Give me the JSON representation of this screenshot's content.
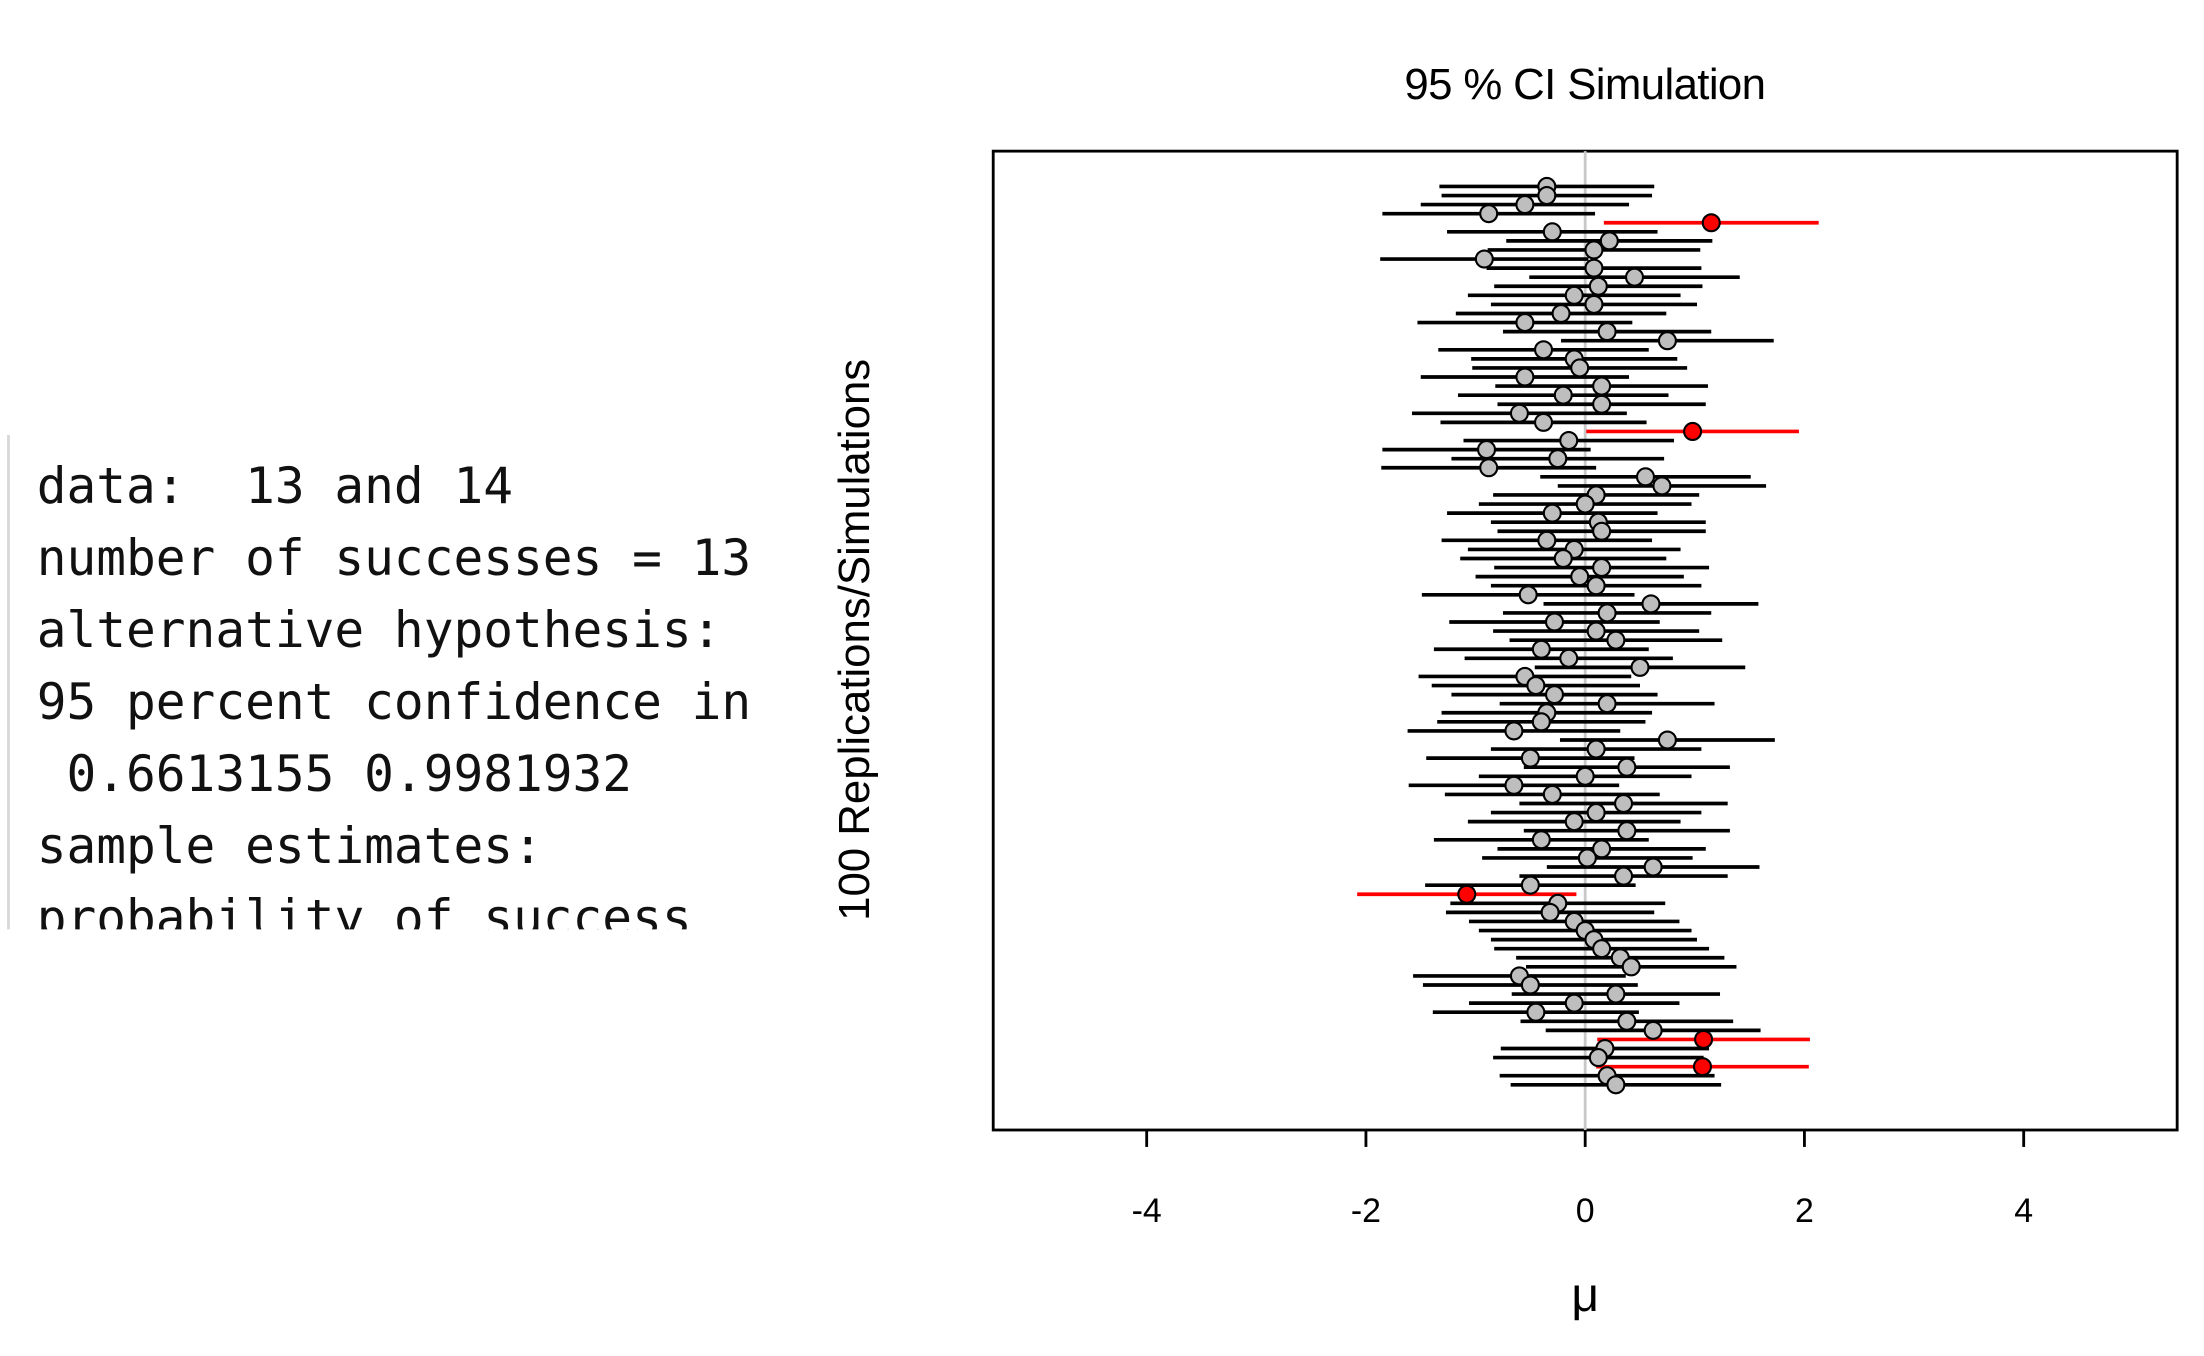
{
  "console": {
    "lines": [
      "data:  13 and 14",
      "number of successes = 13",
      "alternative hypothesis: ",
      "95 percent confidence in",
      " 0.6613155 0.9981932",
      "sample estimates:",
      "probability of success"
    ]
  },
  "chart_data": {
    "type": "ci-simulation",
    "title": "95 % CI Simulation",
    "x_label": "μ",
    "y_label": "100 Replications/Simulations",
    "xlim": [
      -5.4,
      5.4
    ],
    "xticks": [
      -4,
      -2,
      0,
      2,
      4
    ],
    "ref_line": 0,
    "hit_color": "#000000",
    "miss_color": "#ff0000",
    "point_color": "#bebebe",
    "ref_color": "#c8c8c8",
    "values": [
      -0.35,
      -0.35,
      -0.55,
      -0.88,
      1.15,
      -0.3,
      0.22,
      0.08,
      -0.92,
      0.08,
      0.45,
      0.12,
      -0.1,
      0.08,
      -0.22,
      -0.55,
      0.2,
      0.75,
      -0.38,
      -0.1,
      -0.05,
      -0.55,
      0.15,
      -0.2,
      0.15,
      -0.6,
      -0.38,
      0.98,
      -0.15,
      -0.9,
      -0.25,
      -0.88,
      0.55,
      0.7,
      0.1,
      0.0,
      -0.3,
      0.12,
      0.15,
      -0.35,
      -0.1,
      -0.2,
      0.15,
      -0.05,
      0.1,
      -0.52,
      0.6,
      0.2,
      -0.28,
      0.1,
      0.28,
      -0.4,
      -0.15,
      0.5,
      -0.55,
      -0.45,
      -0.28,
      0.2,
      -0.35,
      -0.4,
      -0.65,
      0.75,
      0.1,
      -0.5,
      0.38,
      0.0,
      -0.65,
      -0.3,
      0.35,
      0.1,
      -0.1,
      0.38,
      -0.4,
      0.15,
      0.02,
      0.62,
      0.35,
      -0.5,
      -1.08,
      -0.25,
      -0.32,
      -0.1,
      0.0,
      0.08,
      0.15,
      0.32,
      0.42,
      -0.6,
      -0.5,
      0.28,
      -0.1,
      -0.45,
      0.38,
      0.62,
      1.08,
      0.18,
      0.12,
      1.07,
      0.2,
      0.28
    ],
    "errors": [
      0.98,
      0.96,
      0.95,
      0.97,
      0.98,
      0.96,
      0.94,
      0.97,
      0.95,
      0.98,
      0.96,
      0.95,
      0.97,
      0.94,
      0.96,
      0.98,
      0.95,
      0.97,
      0.96,
      0.94,
      0.98,
      0.95,
      0.97,
      0.96,
      0.95,
      0.98,
      0.94,
      0.97,
      0.96,
      0.95,
      0.97,
      0.98,
      0.96,
      0.95,
      0.94,
      0.97,
      0.96,
      0.98,
      0.95,
      0.96,
      0.97,
      0.94,
      0.98,
      0.95,
      0.96,
      0.97,
      0.98,
      0.95,
      0.96,
      0.94,
      0.97,
      0.98,
      0.95,
      0.96,
      0.97,
      0.95,
      0.94,
      0.98,
      0.96,
      0.95,
      0.97,
      0.98,
      0.96,
      0.95,
      0.94,
      0.97,
      0.96,
      0.98,
      0.95,
      0.96,
      0.97,
      0.94,
      0.98,
      0.95,
      0.96,
      0.97,
      0.95,
      0.96,
      1.0,
      0.98,
      0.95,
      0.96,
      0.97,
      0.94,
      0.98,
      0.95,
      0.96,
      0.97,
      0.98,
      0.95,
      0.96,
      0.94,
      0.97,
      0.98,
      0.97,
      0.95,
      0.96,
      0.97,
      0.98,
      0.96
    ]
  }
}
